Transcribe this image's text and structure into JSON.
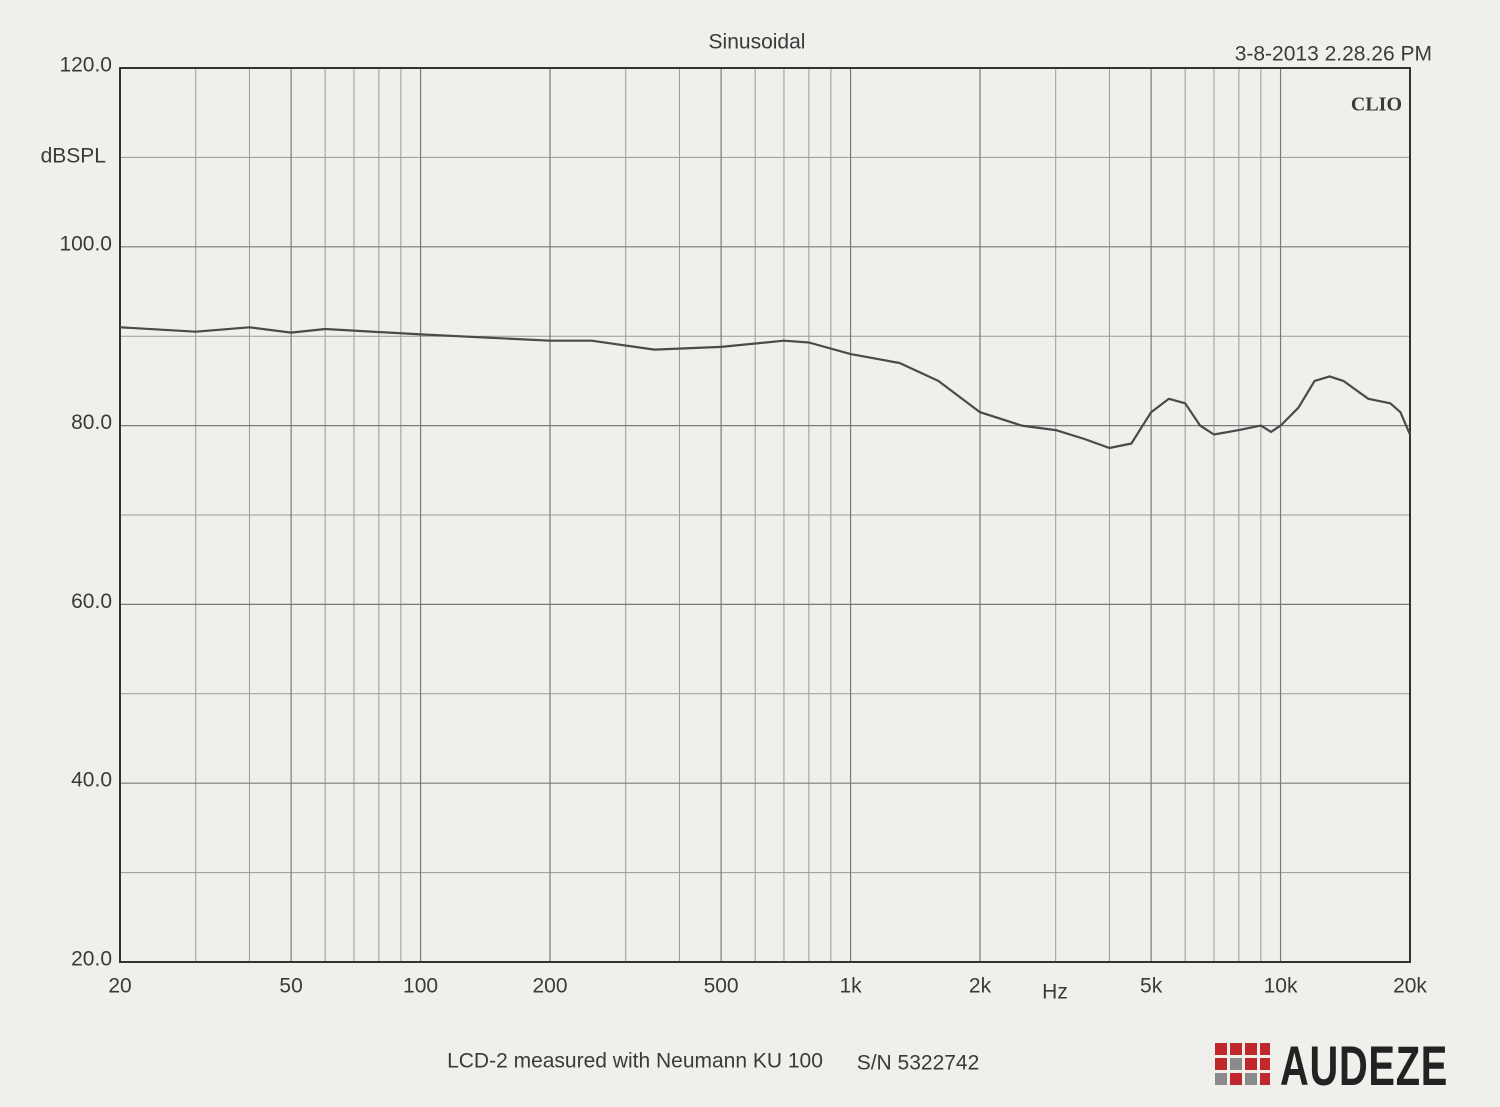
{
  "chart_data": {
    "type": "line",
    "title": "Sinusoidal",
    "timestamp": "3-8-2013 2.28.26 PM",
    "watermark": "CLIO",
    "ylabel": "dBSPL",
    "xlabel": "Hz",
    "caption": "LCD-2 measured with Neumann KU 100",
    "serial": "S/N 5322742",
    "brand": "AUDEZE",
    "xscale": "log",
    "grid": true,
    "xlim": [
      20,
      20000
    ],
    "ylim": [
      20,
      120
    ],
    "xticks": [
      20,
      50,
      100,
      200,
      500,
      {
        "value": 1000,
        "label": "1k"
      },
      {
        "value": 2000,
        "label": "2k"
      },
      {
        "value": 5000,
        "label": "5k"
      },
      {
        "value": 10000,
        "label": "10k"
      },
      {
        "value": 20000,
        "label": "20k"
      }
    ],
    "xminor": [
      30,
      40,
      60,
      70,
      80,
      90,
      300,
      400,
      600,
      700,
      800,
      900,
      3000,
      4000,
      6000,
      7000,
      8000,
      9000
    ],
    "yticks": [
      {
        "value": 20,
        "label": "20.0"
      },
      {
        "value": 40,
        "label": "40.0"
      },
      {
        "value": 60,
        "label": "60.0"
      },
      {
        "value": 80,
        "label": "80.0"
      },
      {
        "value": 100,
        "label": "100.0"
      },
      {
        "value": 120,
        "label": "120.0"
      }
    ],
    "yminor": [
      30,
      50,
      70,
      90,
      110
    ],
    "x": [
      20,
      30,
      40,
      50,
      60,
      100,
      200,
      250,
      350,
      500,
      700,
      800,
      1000,
      1300,
      1600,
      2000,
      2500,
      3000,
      3500,
      4000,
      4500,
      5000,
      5500,
      6000,
      6500,
      7000,
      8000,
      9000,
      9500,
      10000,
      11000,
      12000,
      13000,
      14000,
      16000,
      18000,
      19000,
      20000
    ],
    "series": [
      {
        "color": "#4a4a4a",
        "values": [
          91,
          90.5,
          91,
          90.4,
          90.8,
          90.2,
          89.5,
          89.5,
          88.5,
          88.8,
          89.5,
          89.3,
          88,
          87,
          85,
          81.5,
          80,
          79.5,
          78.5,
          77.5,
          78,
          81.5,
          83,
          82.5,
          80,
          79,
          79.5,
          80,
          79.3,
          80,
          82,
          85,
          85.5,
          85,
          83,
          82.5,
          81.5,
          79
        ]
      }
    ]
  }
}
